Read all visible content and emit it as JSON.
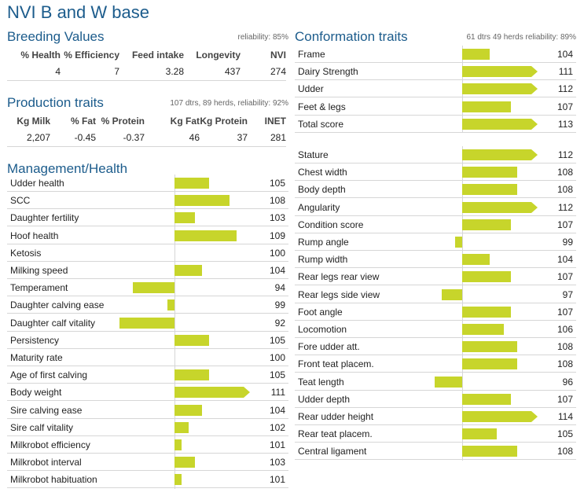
{
  "title": "NVI B and W base",
  "colors": {
    "heading": "#1c5c8c",
    "bar": "#c7d52b",
    "line": "#d6d6d6"
  },
  "breeding": {
    "title": "Breeding Values",
    "note": "reliability: 85%",
    "headers": [
      "% Health",
      "% Efficiency",
      "Feed intake",
      "Longevity",
      "NVI"
    ],
    "values": [
      "4",
      "7",
      "3.28",
      "437",
      "274"
    ]
  },
  "production": {
    "title": "Production traits",
    "note": "107 dtrs, 89 herds, reliability: 92%",
    "headers": [
      "Kg Milk",
      "% Fat",
      "% Protein",
      "Kg Fat",
      "Kg Protein",
      "INET"
    ],
    "values": [
      "2,207",
      "-0.45",
      "-0.37",
      "46",
      "37",
      "281"
    ]
  },
  "management": {
    "title": "Management/Health"
  },
  "conformation": {
    "title": "Conformation traits",
    "note": "61 dtrs 49 herds reliability: 89%"
  },
  "chart_data": [
    {
      "type": "bar",
      "title": "Management/Health",
      "baseline": 100,
      "categories": [
        "Udder health",
        "SCC",
        "Daughter fertility",
        "Hoof health",
        "Ketosis",
        "Milking speed",
        "Temperament",
        "Daughter calving ease",
        "Daughter calf vitality",
        "Persistency",
        "Maturity rate",
        "Age of first calving",
        "Body weight",
        "Sire calving ease",
        "Sire calf vitality",
        "Milkrobot efficiency",
        "Milkrobot interval",
        "Milkrobot habituation"
      ],
      "values": [
        105,
        108,
        103,
        109,
        100,
        104,
        94,
        99,
        92,
        105,
        100,
        105,
        111,
        104,
        102,
        101,
        103,
        101
      ]
    },
    {
      "type": "bar",
      "title": "Conformation traits - summary",
      "baseline": 100,
      "categories": [
        "Frame",
        "Dairy Strength",
        "Udder",
        "Feet & legs",
        "Total score"
      ],
      "values": [
        104,
        111,
        112,
        107,
        113
      ]
    },
    {
      "type": "bar",
      "title": "Conformation traits - linear",
      "baseline": 100,
      "categories": [
        "Stature",
        "Chest width",
        "Body depth",
        "Angularity",
        "Condition score",
        "Rump angle",
        "Rump width",
        "Rear legs rear view",
        "Rear legs side view",
        "Foot angle",
        "Locomotion",
        "Fore udder att.",
        "Front teat placem.",
        "Teat length",
        "Udder depth",
        "Rear udder height",
        "Rear teat placem.",
        "Central ligament"
      ],
      "values": [
        112,
        108,
        108,
        112,
        107,
        99,
        104,
        107,
        97,
        107,
        106,
        108,
        108,
        96,
        107,
        114,
        105,
        108
      ]
    }
  ]
}
